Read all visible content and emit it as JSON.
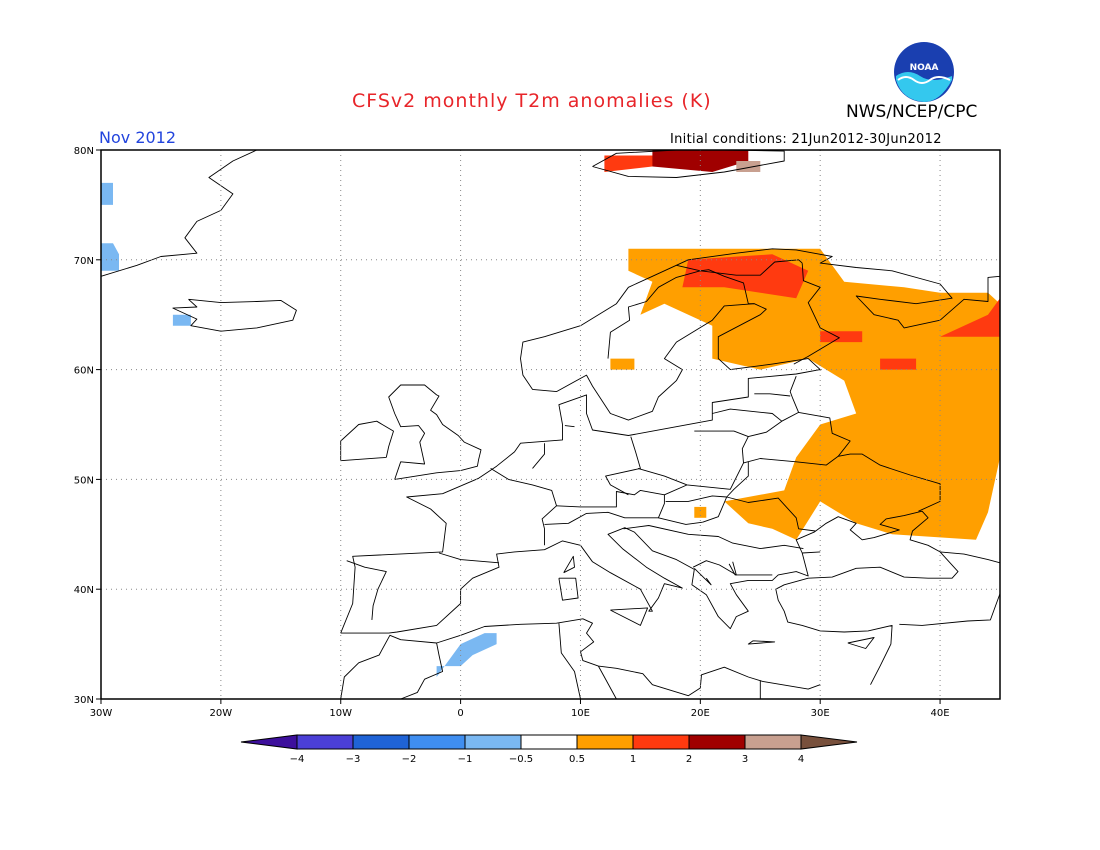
{
  "header": {
    "title": "CFSv2 monthly T2m anomalies (K)",
    "month": "Nov 2012",
    "initial_conditions": "Initial conditions: 21Jun2012-30Jun2012",
    "agency": "NWS/NCEP/CPC",
    "logo_text": "NOAA"
  },
  "map": {
    "lon_range": [
      -30,
      45
    ],
    "lat_range": [
      30,
      80
    ],
    "lon_ticks": [
      {
        "value": -30,
        "label": "30W"
      },
      {
        "value": -20,
        "label": "20W"
      },
      {
        "value": -10,
        "label": "10W"
      },
      {
        "value": 0,
        "label": "0"
      },
      {
        "value": 10,
        "label": "10E"
      },
      {
        "value": 20,
        "label": "20E"
      },
      {
        "value": 30,
        "label": "30E"
      },
      {
        "value": 40,
        "label": "40E"
      }
    ],
    "lat_ticks": [
      {
        "value": 30,
        "label": "30N"
      },
      {
        "value": 40,
        "label": "40N"
      },
      {
        "value": 50,
        "label": "50N"
      },
      {
        "value": 60,
        "label": "60N"
      },
      {
        "value": 70,
        "label": "70N"
      },
      {
        "value": 80,
        "label": "80N"
      }
    ],
    "grid": true,
    "anomaly_regions": [
      {
        "category": "0.5-1",
        "color": "#ff9f00",
        "lonlat": [
          [
            14,
            71
          ],
          [
            30,
            71
          ],
          [
            32,
            68
          ],
          [
            37,
            67.5
          ],
          [
            40,
            67
          ],
          [
            44,
            67
          ],
          [
            45,
            66
          ],
          [
            45,
            60
          ],
          [
            45,
            52
          ],
          [
            44,
            47
          ],
          [
            43,
            44.5
          ],
          [
            36,
            45
          ],
          [
            33,
            46
          ],
          [
            30,
            48
          ],
          [
            28,
            44.5
          ],
          [
            26,
            45.5
          ],
          [
            24,
            46
          ],
          [
            22,
            48
          ],
          [
            27,
            49
          ],
          [
            28,
            52
          ],
          [
            30,
            55
          ],
          [
            33,
            56
          ],
          [
            32,
            59
          ],
          [
            29,
            61
          ],
          [
            25,
            60
          ],
          [
            21,
            61
          ],
          [
            21,
            64
          ],
          [
            17,
            66
          ],
          [
            15,
            65
          ],
          [
            16,
            68
          ],
          [
            14,
            69
          ]
        ]
      },
      {
        "category": "0.5-1",
        "color": "#ff9f00",
        "lonlat": [
          [
            12.5,
            60
          ],
          [
            14.5,
            60
          ],
          [
            14.5,
            61
          ],
          [
            12.5,
            61
          ]
        ]
      },
      {
        "category": "0.5-1",
        "color": "#ff9f00",
        "lonlat": [
          [
            19.5,
            46.5
          ],
          [
            20.5,
            46.5
          ],
          [
            20.5,
            47.5
          ],
          [
            19.5,
            47.5
          ]
        ]
      },
      {
        "category": "1-2",
        "color": "#ff3a10",
        "lonlat": [
          [
            19,
            70
          ],
          [
            26,
            70.5
          ],
          [
            29,
            69
          ],
          [
            28,
            66.5
          ],
          [
            25,
            67
          ],
          [
            22,
            67.5
          ],
          [
            18.5,
            67.5
          ]
        ]
      },
      {
        "category": "1-2",
        "color": "#ff3a10",
        "lonlat": [
          [
            40,
            63
          ],
          [
            44,
            65
          ],
          [
            45,
            66.5
          ],
          [
            45,
            63
          ]
        ]
      },
      {
        "category": "1-2",
        "color": "#ff3a10",
        "lonlat": [
          [
            30,
            62.5
          ],
          [
            33.5,
            62.5
          ],
          [
            33.5,
            63.5
          ],
          [
            30,
            63.5
          ]
        ]
      },
      {
        "category": "1-2",
        "color": "#ff3a10",
        "lonlat": [
          [
            35,
            60
          ],
          [
            38,
            60
          ],
          [
            38,
            61
          ],
          [
            35,
            61
          ]
        ]
      },
      {
        "category": "1-2",
        "color": "#ff3a10",
        "lonlat": [
          [
            12,
            78
          ],
          [
            16,
            78.5
          ],
          [
            18,
            79.5
          ],
          [
            12,
            79.5
          ]
        ]
      },
      {
        "category": "2-3",
        "color": "#a00000",
        "lonlat": [
          [
            16,
            80
          ],
          [
            24,
            80
          ],
          [
            24,
            79
          ],
          [
            21,
            78
          ],
          [
            16,
            78.5
          ]
        ]
      },
      {
        "category": "3-4",
        "color": "#c8a090",
        "lonlat": [
          [
            23,
            78
          ],
          [
            25,
            78
          ],
          [
            25,
            79
          ],
          [
            23,
            79
          ]
        ]
      },
      {
        "category": "-1--0.5",
        "color": "#7ab8f2",
        "lonlat": [
          [
            -30,
            77
          ],
          [
            -29,
            77
          ],
          [
            -29,
            75
          ],
          [
            -30,
            75
          ]
        ]
      },
      {
        "category": "-1--0.5",
        "color": "#7ab8f2",
        "lonlat": [
          [
            -30,
            71.5
          ],
          [
            -29,
            71.5
          ],
          [
            -28.5,
            70.5
          ],
          [
            -28.5,
            69
          ],
          [
            -30,
            69
          ]
        ]
      },
      {
        "category": "-1--0.5",
        "color": "#7ab8f2",
        "lonlat": [
          [
            -24,
            65
          ],
          [
            -22.5,
            65
          ],
          [
            -22.5,
            64
          ],
          [
            -24,
            64
          ]
        ]
      },
      {
        "category": "-1--0.5",
        "color": "#7ab8f2",
        "lonlat": [
          [
            -2,
            32
          ],
          [
            0,
            35
          ],
          [
            2,
            36
          ],
          [
            3,
            36
          ],
          [
            3,
            35
          ],
          [
            1,
            34
          ],
          [
            0,
            33
          ],
          [
            -2,
            33
          ]
        ]
      }
    ]
  },
  "colorbar": {
    "colors": [
      "#3d0f9c",
      "#4b3fd6",
      "#1f63d6",
      "#3f8ef0",
      "#7ab8f2",
      "#ffffff",
      "#ff9f00",
      "#ff3a10",
      "#a00000",
      "#c8a090",
      "#78503c"
    ],
    "labels": [
      "−4",
      "−3",
      "−2",
      "−1",
      "−0.5",
      "0.5",
      "1",
      "2",
      "3",
      "4"
    ]
  }
}
